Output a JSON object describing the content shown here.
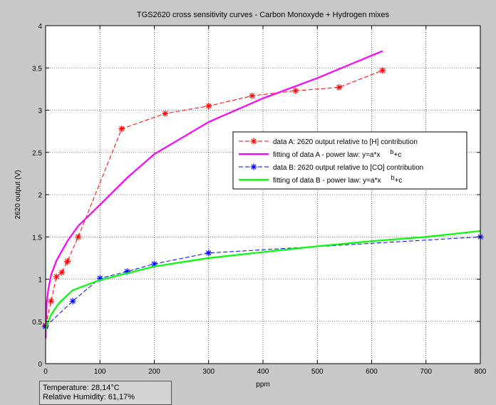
{
  "chart_data": {
    "type": "line",
    "title": "TGS2620 cross sensitivity curves - Carbon Monoxyde + Hydrogen mixes",
    "xlabel": "ppm",
    "ylabel": "2620 output (V)",
    "xlim": [
      0,
      800
    ],
    "ylim": [
      0,
      4
    ],
    "xticks": [
      0,
      100,
      200,
      300,
      400,
      500,
      600,
      700,
      800
    ],
    "yticks": [
      0,
      0.5,
      1,
      1.5,
      2,
      2.5,
      3,
      3.5,
      4
    ],
    "ytick_labels": [
      "0",
      "0.5",
      "1",
      "1.5",
      "2",
      "2.5",
      "3",
      "3.5",
      "4"
    ],
    "grid": true,
    "legend_position": "center-right",
    "series": [
      {
        "name": "data A: 2620 output relative to [H] contribution",
        "color": "#ff0000",
        "style": "dashed-star",
        "x": [
          0,
          10,
          20,
          30,
          40,
          60,
          140,
          220,
          300,
          380,
          460,
          540,
          620
        ],
        "y": [
          0.45,
          0.74,
          1.03,
          1.08,
          1.21,
          1.5,
          2.78,
          2.96,
          3.05,
          3.17,
          3.23,
          3.27,
          3.47
        ]
      },
      {
        "name": "fitting of data A - power law: y=a*x",
        "superscript": "b",
        "suffix": "+c",
        "color": "#ff00ff",
        "style": "solid",
        "x": [
          0,
          2,
          5,
          10,
          20,
          40,
          60,
          100,
          150,
          200,
          300,
          400,
          500,
          620
        ],
        "y": [
          0.3,
          0.72,
          0.88,
          1.05,
          1.22,
          1.45,
          1.63,
          1.88,
          2.2,
          2.48,
          2.86,
          3.14,
          3.38,
          3.7
        ]
      },
      {
        "name": "data B: 2620 output relative to [CO] contribution",
        "color": "#0000ff",
        "style": "dashed-star",
        "x": [
          0,
          50,
          100,
          150,
          200,
          300,
          800
        ],
        "y": [
          0.44,
          0.74,
          1.01,
          1.09,
          1.18,
          1.31,
          1.5
        ]
      },
      {
        "name": "fitting of data B - power law: y=a*x",
        "superscript": "b",
        "suffix": "+c",
        "color": "#00ff00",
        "style": "solid",
        "x": [
          0,
          2,
          10,
          25,
          50,
          100,
          200,
          300,
          400,
          500,
          600,
          700,
          800
        ],
        "y": [
          0.4,
          0.45,
          0.58,
          0.72,
          0.87,
          0.99,
          1.15,
          1.25,
          1.32,
          1.39,
          1.45,
          1.5,
          1.57
        ]
      }
    ]
  },
  "info": {
    "temperature": "Temperature: 28,14°C",
    "humidity": "Relative Humidity: 61,17%"
  }
}
